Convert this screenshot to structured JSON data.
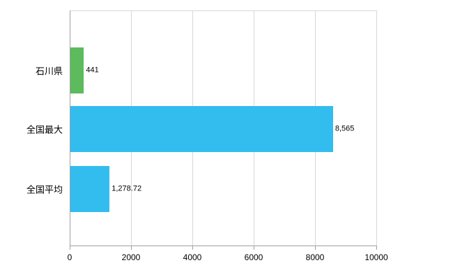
{
  "chart_data": {
    "type": "bar",
    "orientation": "horizontal",
    "title": "",
    "xlabel": "",
    "ylabel": "",
    "categories": [
      "石川県",
      "全国最大",
      "全国平均"
    ],
    "values": [
      441,
      8565,
      1278.72
    ],
    "value_labels": [
      "441",
      "8,565",
      "1,278.72"
    ],
    "bar_colors": [
      "#5dba5d",
      "#33bdef",
      "#33bdef"
    ],
    "xlim": [
      0,
      10000
    ],
    "xticks": [
      0,
      2000,
      4000,
      6000,
      8000,
      10000
    ],
    "xtick_labels": [
      "0",
      "2000",
      "4000",
      "6000",
      "8000",
      "10000"
    ],
    "grid": true,
    "legend": "none",
    "colors": {
      "grid": "#d8d8d8",
      "axis": "#a0a0a0",
      "text": "#000000",
      "background": "#ffffff"
    }
  }
}
